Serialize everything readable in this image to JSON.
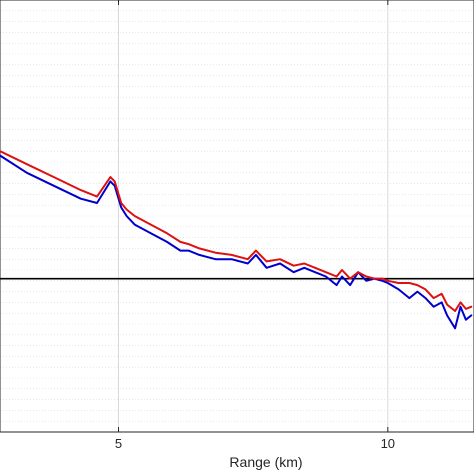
{
  "chart_data": {
    "type": "line",
    "title": "",
    "xlabel": "Range (km)",
    "ylabel": "",
    "xlim": [
      2.8,
      11.6
    ],
    "ylim": [
      0,
      1
    ],
    "x_ticks": [
      5,
      10
    ],
    "x_tick_labels": [
      "5",
      "10"
    ],
    "grid": {
      "major": true,
      "minor_y": true
    },
    "reference_line": {
      "y": 0.355,
      "color": "#000000"
    },
    "colors": {
      "series_1": "#0000cc",
      "series_2": "#dd1111",
      "grid": "#d9d9d9",
      "axes": "#262626"
    },
    "series": [
      {
        "color": "#0000cc",
        "x": [
          2.8,
          3.3,
          3.8,
          4.3,
          4.6,
          4.85,
          4.93,
          5.05,
          5.15,
          5.3,
          5.6,
          5.9,
          6.15,
          6.3,
          6.5,
          6.8,
          7.1,
          7.4,
          7.55,
          7.75,
          8.0,
          8.25,
          8.45,
          8.65,
          8.85,
          9.05,
          9.15,
          9.3,
          9.45,
          9.6,
          9.75,
          9.9,
          10.0,
          10.2,
          10.4,
          10.55,
          10.7,
          10.85,
          11.0,
          11.1,
          11.25,
          11.35,
          11.45,
          11.55
        ],
        "y": [
          0.64,
          0.6,
          0.57,
          0.54,
          0.53,
          0.58,
          0.57,
          0.52,
          0.5,
          0.48,
          0.46,
          0.44,
          0.42,
          0.42,
          0.41,
          0.4,
          0.4,
          0.39,
          0.41,
          0.38,
          0.39,
          0.37,
          0.38,
          0.37,
          0.36,
          0.34,
          0.36,
          0.34,
          0.37,
          0.35,
          0.355,
          0.35,
          0.345,
          0.33,
          0.31,
          0.325,
          0.31,
          0.29,
          0.3,
          0.27,
          0.24,
          0.29,
          0.26,
          0.27
        ]
      },
      {
        "color": "#dd1111",
        "x": [
          2.8,
          3.3,
          3.8,
          4.3,
          4.6,
          4.85,
          4.93,
          5.05,
          5.15,
          5.3,
          5.6,
          5.9,
          6.15,
          6.3,
          6.5,
          6.8,
          7.1,
          7.4,
          7.55,
          7.75,
          8.0,
          8.25,
          8.45,
          8.65,
          8.85,
          9.05,
          9.15,
          9.3,
          9.45,
          9.6,
          9.75,
          9.9,
          10.0,
          10.2,
          10.4,
          10.55,
          10.7,
          10.85,
          11.0,
          11.1,
          11.25,
          11.35,
          11.45,
          11.55
        ],
        "y": [
          0.65,
          0.62,
          0.59,
          0.56,
          0.545,
          0.59,
          0.58,
          0.53,
          0.515,
          0.5,
          0.48,
          0.46,
          0.44,
          0.435,
          0.425,
          0.415,
          0.41,
          0.4,
          0.42,
          0.395,
          0.4,
          0.385,
          0.39,
          0.38,
          0.37,
          0.36,
          0.375,
          0.355,
          0.37,
          0.36,
          0.355,
          0.355,
          0.35,
          0.345,
          0.345,
          0.34,
          0.33,
          0.31,
          0.32,
          0.295,
          0.28,
          0.3,
          0.285,
          0.29
        ]
      }
    ]
  }
}
